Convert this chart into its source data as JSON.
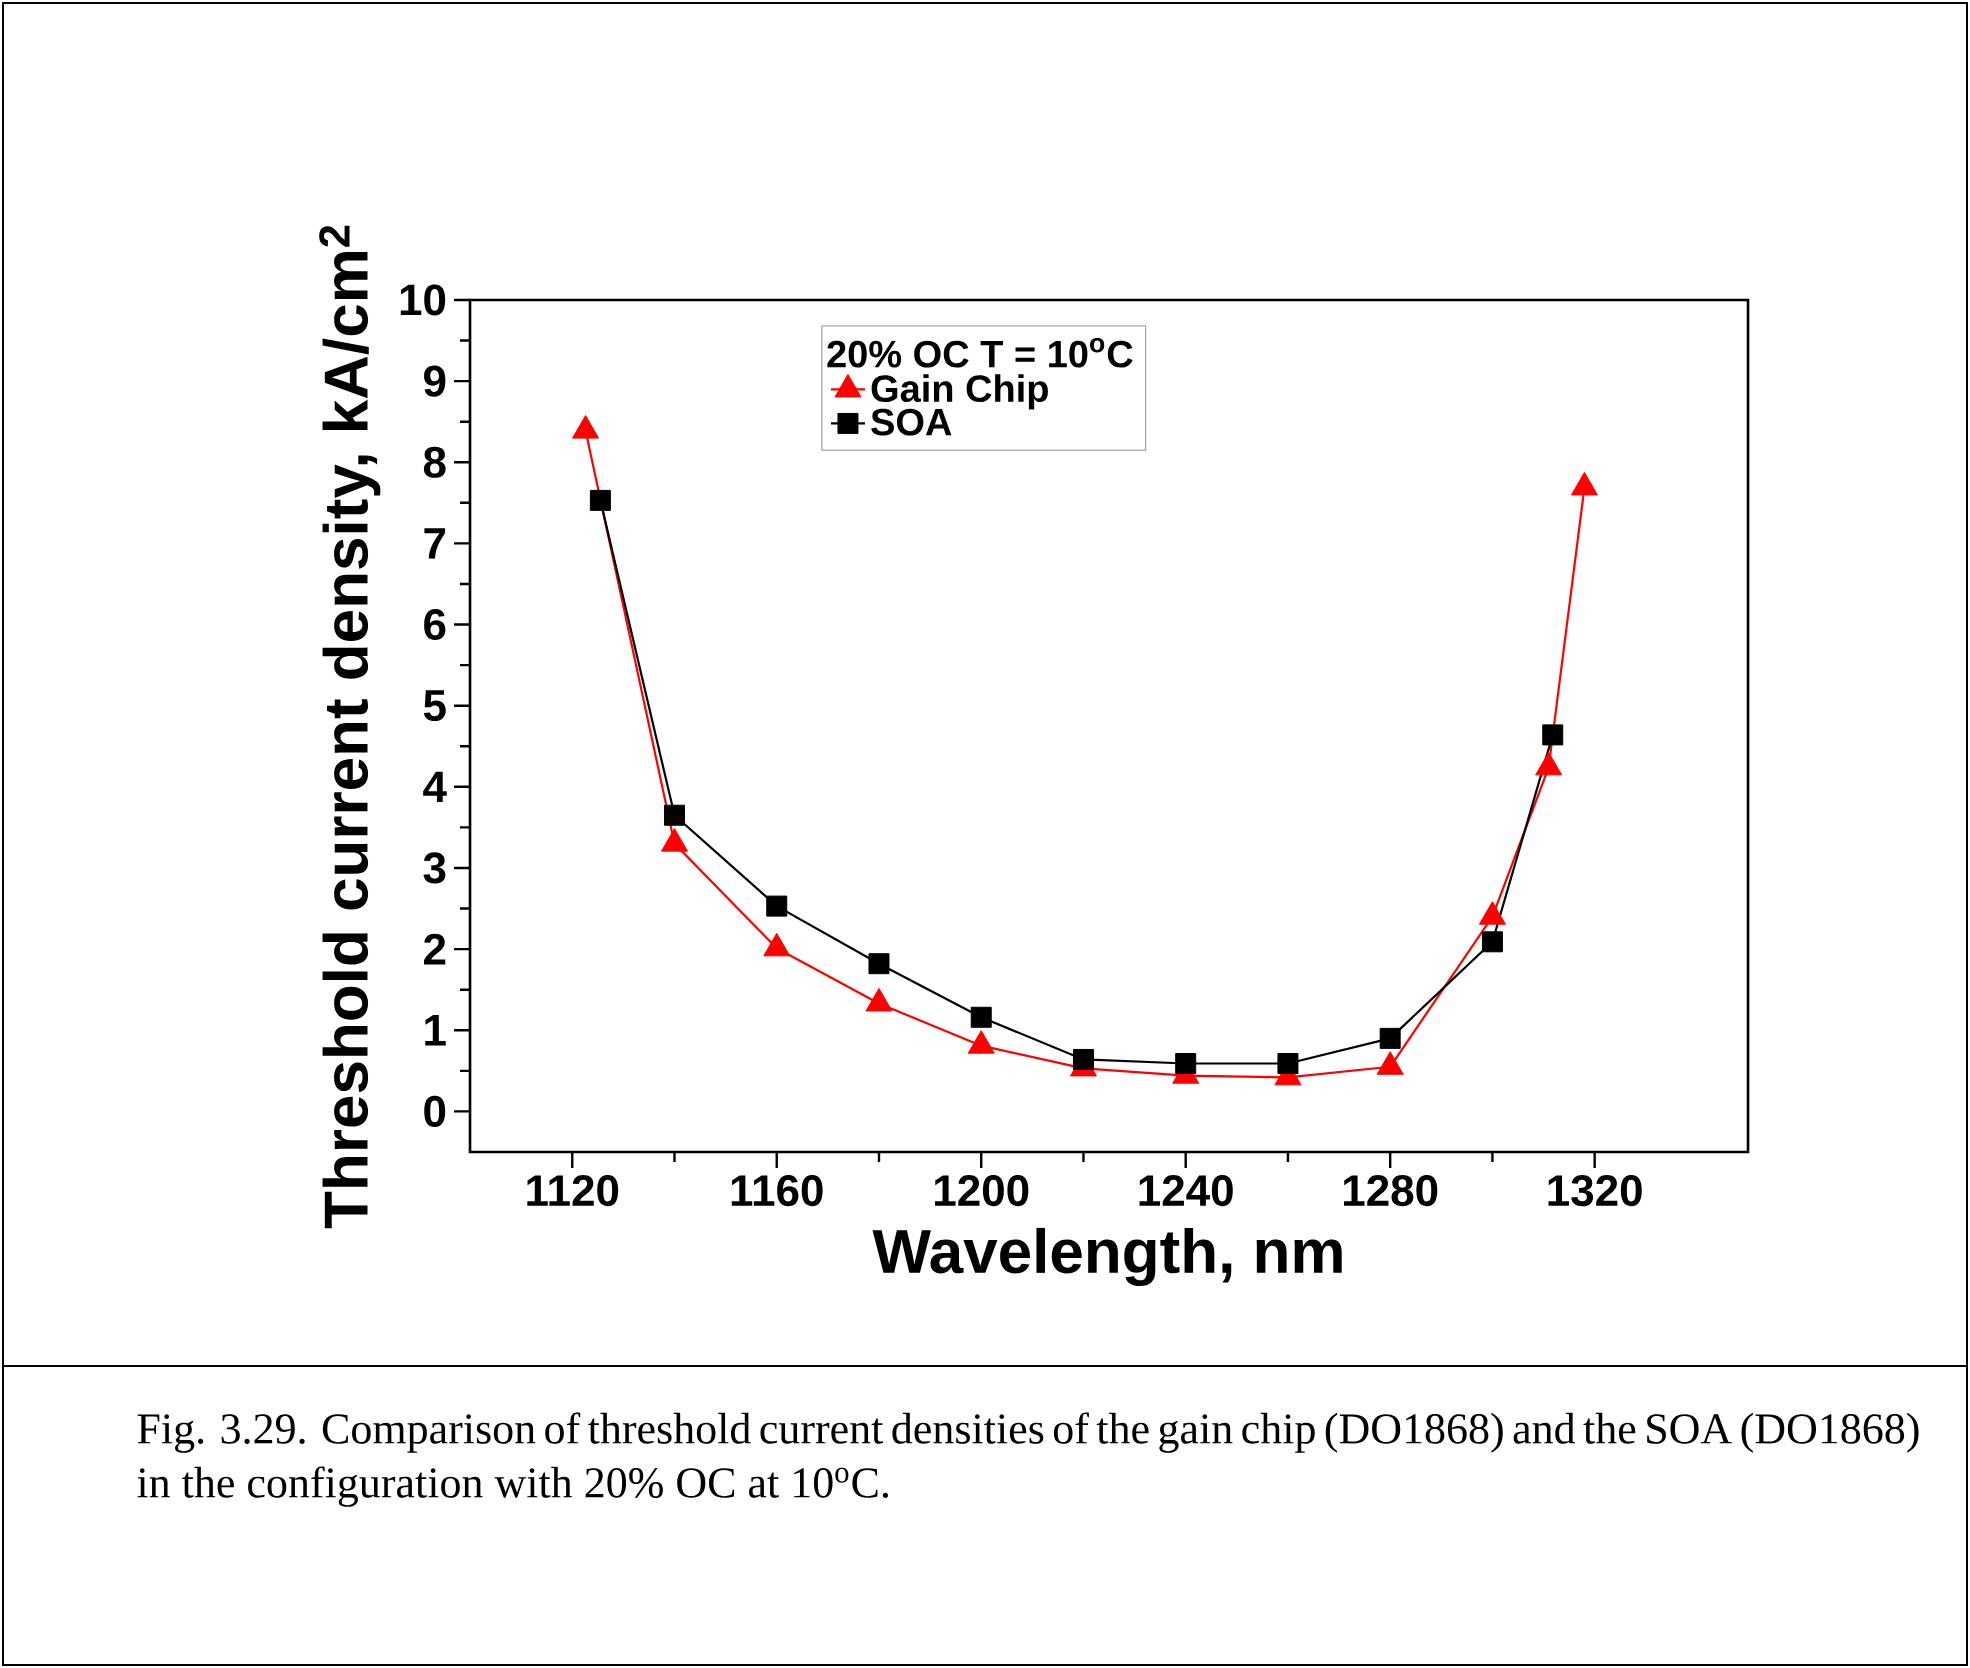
{
  "chart_data": {
    "type": "line",
    "xlabel": "Wavelength, nm",
    "ylabel": "Threshold current density, kA/cm$^{2}$",
    "legend_title": "20% OC  T = 10$^{o}$C",
    "legend": "top",
    "xlim": [
      1100,
      1350
    ],
    "xticks": [
      1120,
      1160,
      1200,
      1240,
      1280,
      1320
    ],
    "ylim": [
      -0.5,
      10
    ],
    "yticks": [
      0,
      1,
      2,
      3,
      4,
      5,
      6,
      7,
      8,
      9,
      10
    ],
    "line_style": "solid",
    "series": [
      {
        "name": "Gain Chip",
        "color": "#ff0000",
        "marker": "triangle",
        "x": [
          1122.6,
          1140,
          1160,
          1180,
          1200,
          1220,
          1240,
          1260,
          1280,
          1300,
          1311,
          1318
        ],
        "values": [
          8.39,
          3.3,
          2.01,
          1.33,
          0.81,
          0.53,
          0.44,
          0.42,
          0.55,
          2.4,
          4.24,
          7.69
        ]
      },
      {
        "name": "SOA",
        "color": "#000000",
        "marker": "square",
        "x": [
          1125.5,
          1140,
          1160,
          1180,
          1200,
          1220,
          1240,
          1260,
          1280,
          1300,
          1311.8
        ],
        "values": [
          7.53,
          3.65,
          2.53,
          1.82,
          1.16,
          0.64,
          0.59,
          0.59,
          0.9,
          2.09,
          4.64
        ]
      }
    ],
    "annotations": [
      "Fig. 3.29. Comparison of threshold current densities of the gain chip (DO1868) and the SOA (DO1868) in the configuration with 20% OC at 10$^{o}$C."
    ]
  }
}
